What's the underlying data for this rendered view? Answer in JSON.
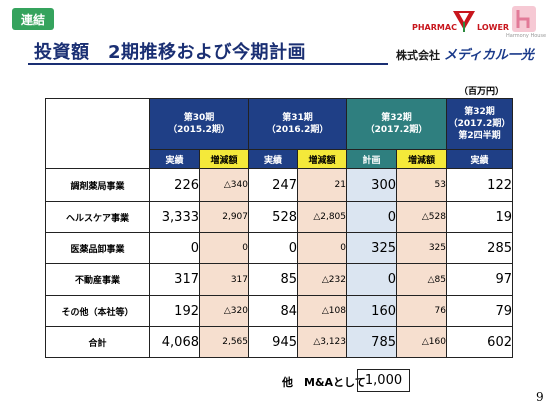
{
  "badge": "連結",
  "title": "投資額　2期推移および今期計画",
  "logos": {
    "pharmac_left": "PHARMAC",
    "pharmac_right": "LOWER",
    "harmony": "Harmony House"
  },
  "company": {
    "prefix": "株式会社",
    "name": "メディカル一光"
  },
  "unit": "（百万円）",
  "periods": [
    {
      "name": "第30期",
      "date": "（2015.2期）"
    },
    {
      "name": "第31期",
      "date": "（2016.2期）"
    },
    {
      "name": "第32期",
      "date": "（2017.2期）"
    },
    {
      "name": "第32期",
      "date": "（2017.2期）",
      "sub": "第2四半期"
    }
  ],
  "subheaders": {
    "actual": "実績",
    "change": "増減額",
    "plan": "計画"
  },
  "rows": [
    {
      "label": "調剤薬局事業",
      "p30": "226",
      "p30c": "△340",
      "p31": "247",
      "p31c": "21",
      "p32": "300",
      "p32c": "53",
      "q2": "122"
    },
    {
      "label": "ヘルスケア事業",
      "p30": "3,333",
      "p30c": "2,907",
      "p31": "528",
      "p31c": "△2,805",
      "p32": "0",
      "p32c": "△528",
      "q2": "19"
    },
    {
      "label": "医薬品卸事業",
      "p30": "0",
      "p30c": "0",
      "p31": "0",
      "p31c": "0",
      "p32": "325",
      "p32c": "325",
      "q2": "285"
    },
    {
      "label": "不動産事業",
      "p30": "317",
      "p30c": "317",
      "p31": "85",
      "p31c": "△232",
      "p32": "0",
      "p32c": "△85",
      "q2": "97"
    },
    {
      "label": "その他（本社等）",
      "p30": "192",
      "p30c": "△320",
      "p31": "84",
      "p31c": "△108",
      "p32": "160",
      "p32c": "76",
      "q2": "79"
    },
    {
      "label": "合計",
      "p30": "4,068",
      "p30c": "2,565",
      "p31": "945",
      "p31c": "△3,123",
      "p32": "785",
      "p32c": "△160",
      "q2": "602"
    }
  ],
  "mna": {
    "label": "他　M&Aとして",
    "value": "1,000"
  },
  "page_number": "9",
  "colors": {
    "header_blue": "#1f3f86",
    "header_teal": "#2f7f7f",
    "change_yellow": "#f4e93a",
    "change_cell": "#f6dfcf",
    "plan_cell": "#dbe5f1",
    "badge_green": "#35a35d",
    "title_navy": "#1a2f73"
  }
}
